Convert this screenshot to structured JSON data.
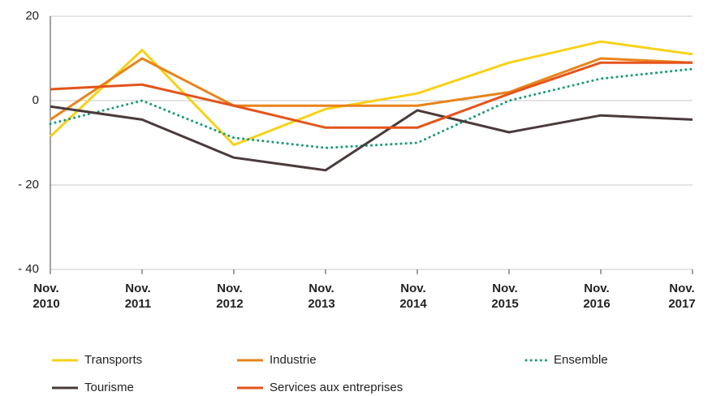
{
  "chart_data": {
    "type": "line",
    "categories": [
      "Nov. 2010",
      "Nov. 2011",
      "Nov. 2012",
      "Nov. 2013",
      "Nov. 2014",
      "Nov. 2015",
      "Nov. 2016",
      "Nov. 2017"
    ],
    "series": [
      {
        "name": "Transports",
        "color": "#f7d117",
        "style": "solid",
        "values": [
          -8.5,
          12,
          -10.5,
          -2,
          1.7,
          9,
          14,
          11
        ]
      },
      {
        "name": "Industrie",
        "color": "#e8841a",
        "style": "solid",
        "values": [
          -4.5,
          10,
          -1.2,
          -1.2,
          -1.2,
          2,
          10,
          9
        ]
      },
      {
        "name": "Ensemble",
        "color": "#1a9a78",
        "style": "dotted",
        "values": [
          -5.5,
          0,
          -8.8,
          -11.2,
          -10,
          0,
          5.2,
          7.5
        ]
      },
      {
        "name": "Tourisme",
        "color": "#4a3b3a",
        "style": "solid",
        "values": [
          -1.4,
          -4.5,
          -13.5,
          -16.5,
          -2.3,
          -7.5,
          -3.5,
          -4.5
        ]
      },
      {
        "name": "Services aux entreprises",
        "color": "#e4541b",
        "style": "solid",
        "values": [
          2.7,
          3.8,
          -1.2,
          -6.4,
          -6.4,
          1.6,
          9,
          9
        ]
      }
    ],
    "ylim": [
      -40,
      20
    ],
    "yticks": [
      {
        "value": -40,
        "label": "- 40"
      },
      {
        "value": -20,
        "label": "- 20"
      },
      0,
      20
    ],
    "grid": true
  }
}
